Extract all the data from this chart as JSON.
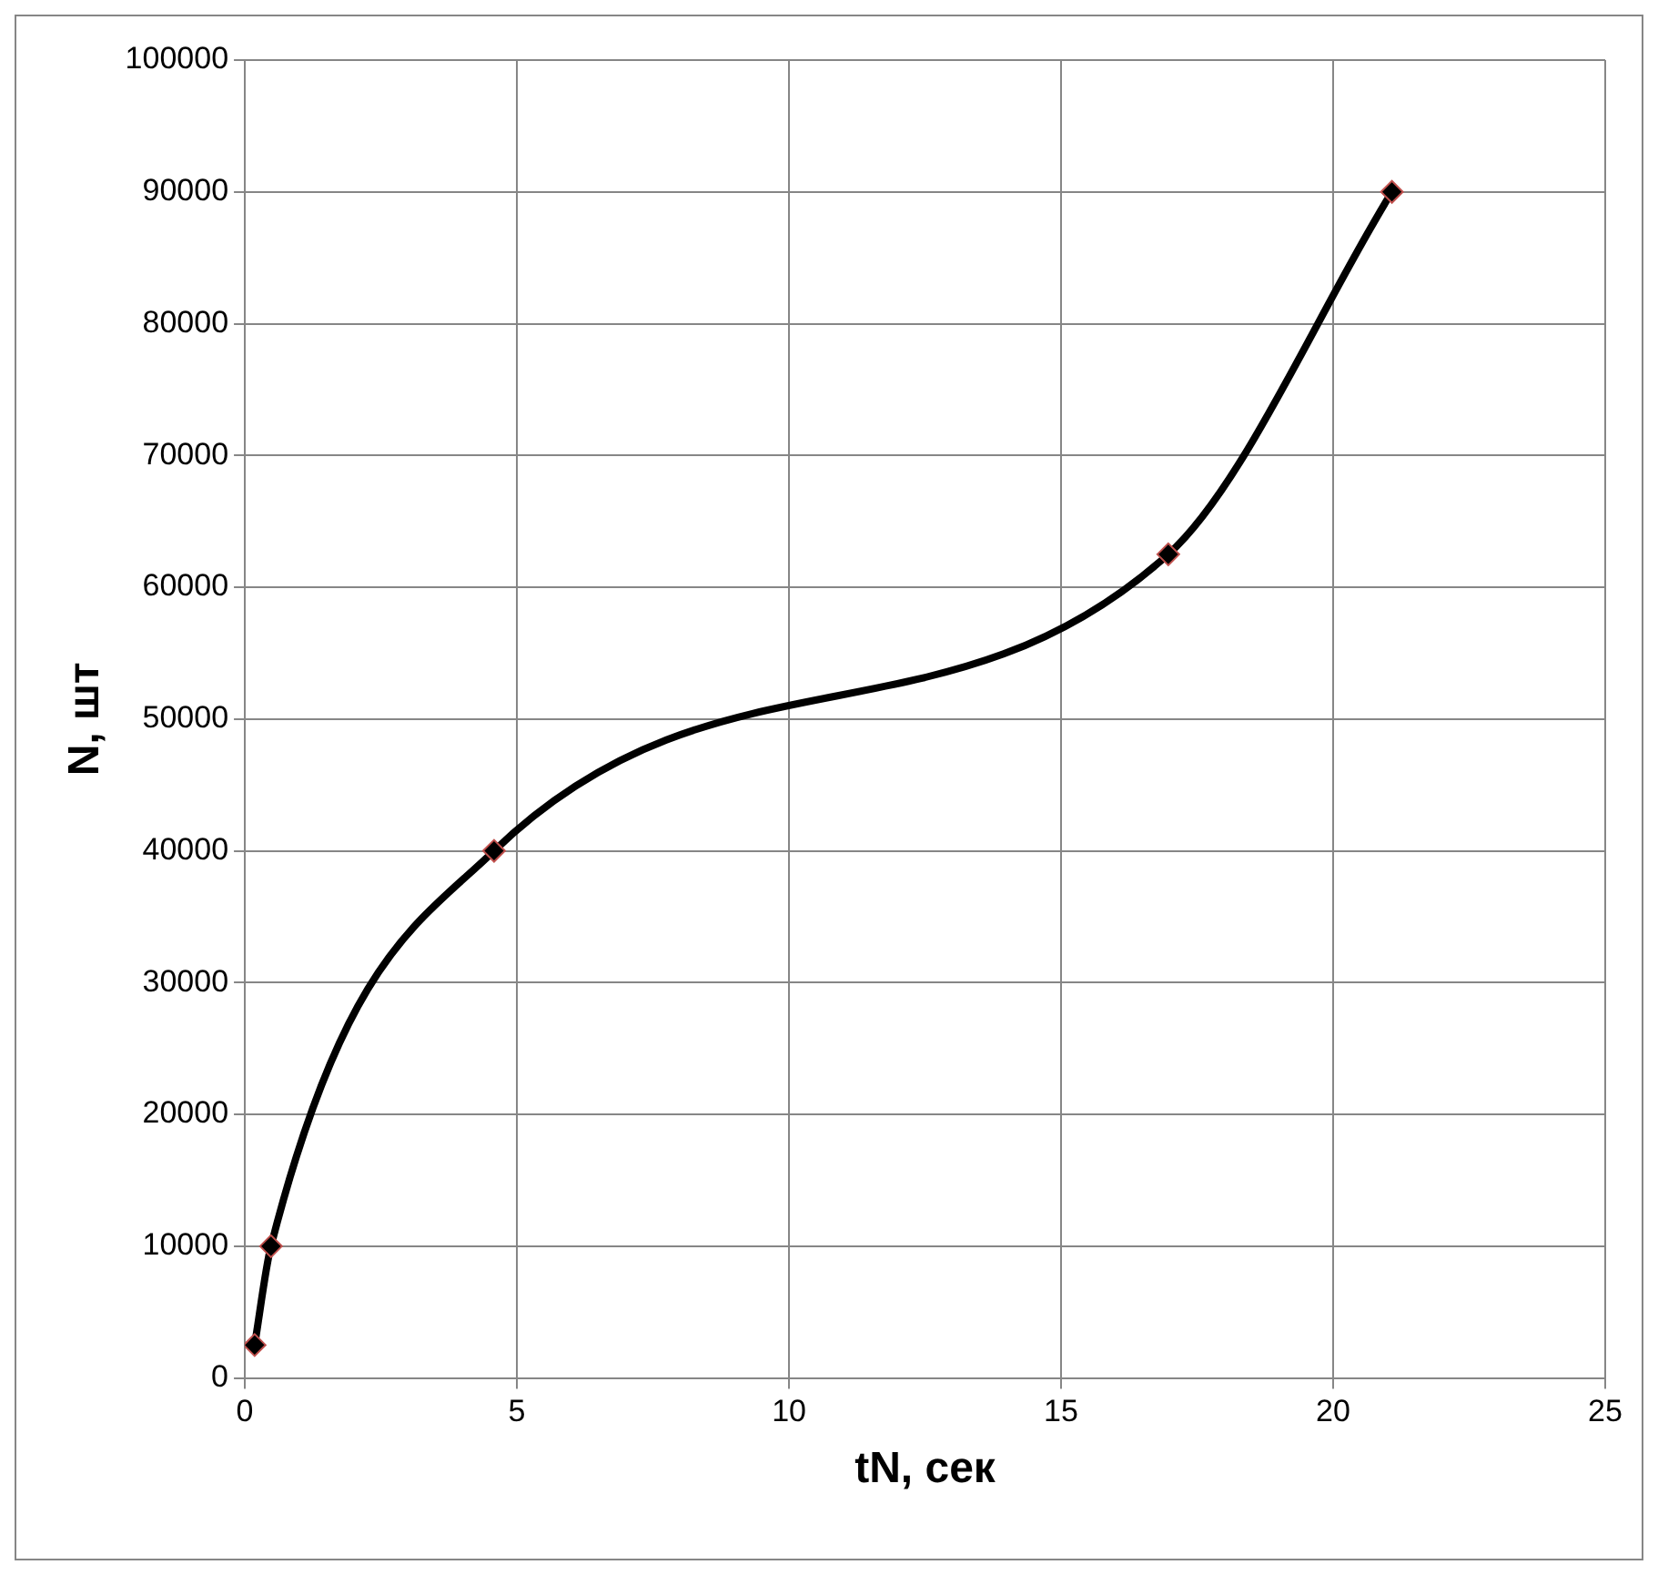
{
  "chart_data": {
    "type": "line",
    "xlabel": "tN, сек",
    "ylabel": "N, шт",
    "series": [
      {
        "color": "#000000",
        "x": [
          0.18,
          0.48,
          4.58,
          16.97,
          21.08
        ],
        "values": [
          2500,
          10000,
          40000,
          62500,
          90000
        ]
      }
    ],
    "xlim": [
      0,
      25
    ],
    "xticks": [
      0,
      5,
      10,
      15,
      20,
      25
    ],
    "ylim": [
      0,
      100000
    ],
    "yticks": [
      0,
      10000,
      20000,
      30000,
      40000,
      50000,
      60000,
      70000,
      80000,
      90000,
      100000
    ],
    "grid": true,
    "legend": false,
    "marker": "diamond",
    "line_style": "solid"
  }
}
